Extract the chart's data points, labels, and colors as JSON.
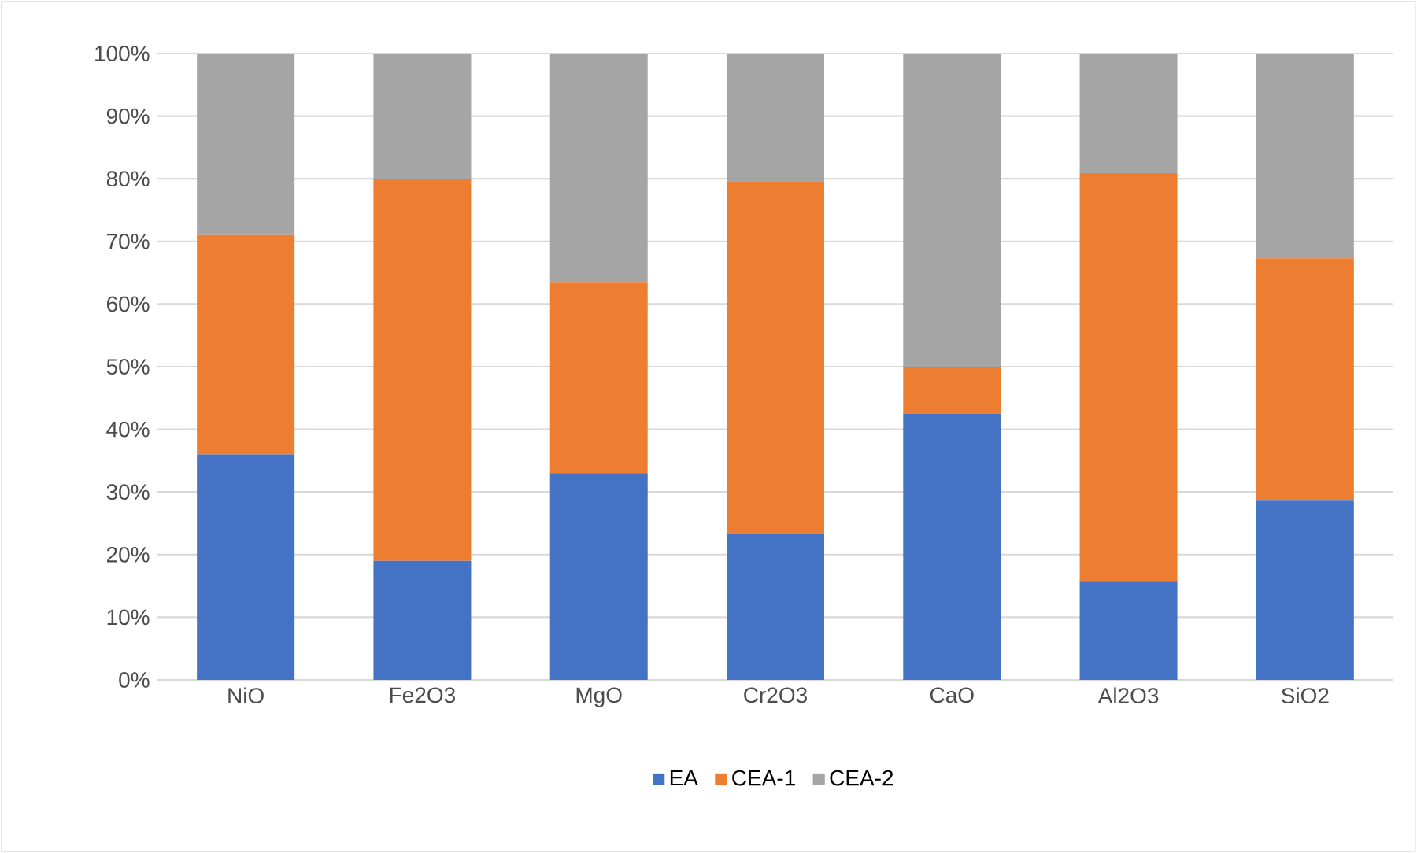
{
  "chart_data": {
    "type": "bar",
    "stacked": true,
    "categories": [
      "NiO",
      "Fe2O3",
      "MgO",
      "Cr2O3",
      "CaO",
      "Al2O3",
      "SiO2"
    ],
    "series": [
      {
        "name": "EA",
        "color": "#4472c4",
        "values": [
          36,
          19,
          33,
          23.4,
          42.5,
          15.8,
          28.6
        ]
      },
      {
        "name": "CEA-1",
        "color": "#ed7d31",
        "values": [
          35,
          61,
          30.4,
          56.2,
          7.5,
          65.1,
          38.7
        ]
      },
      {
        "name": "CEA-2",
        "color": "#a5a5a5",
        "values": [
          29,
          20,
          36.6,
          20.4,
          50,
          19.1,
          32.7
        ]
      }
    ],
    "ylim": [
      0,
      100
    ],
    "yticks": [
      {
        "value": 0,
        "label": "0%"
      },
      {
        "value": 10,
        "label": "10%"
      },
      {
        "value": 20,
        "label": "20%"
      },
      {
        "value": 30,
        "label": "30%"
      },
      {
        "value": 40,
        "label": "40%"
      },
      {
        "value": 50,
        "label": "50%"
      },
      {
        "value": 60,
        "label": "60%"
      },
      {
        "value": 70,
        "label": "70%"
      },
      {
        "value": 80,
        "label": "80%"
      },
      {
        "value": 90,
        "label": "90%"
      },
      {
        "value": 100,
        "label": "100%"
      }
    ],
    "grid": "y",
    "legend": "bottom"
  }
}
